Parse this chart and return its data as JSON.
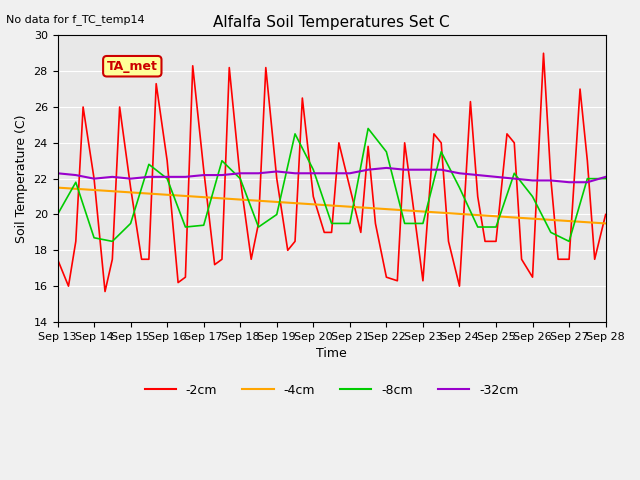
{
  "title": "Alfalfa Soil Temperatures Set C",
  "subtitle": "No data for f_TC_temp14",
  "xlabel": "Time",
  "ylabel": "Soil Temperature (C)",
  "ylim": [
    14,
    30
  ],
  "xlim": [
    0,
    15
  ],
  "xtick_positions": [
    0,
    1,
    2,
    3,
    4,
    5,
    6,
    7,
    8,
    9,
    10,
    11,
    12,
    13,
    14,
    15
  ],
  "xtick_labels": [
    "Sep 13",
    "Sep 14",
    "Sep 15",
    "Sep 16",
    "Sep 17",
    "Sep 18",
    "Sep 19",
    "Sep 20",
    "Sep 21",
    "Sep 22",
    "Sep 23",
    "Sep 24",
    "Sep 25",
    "Sep 26",
    "Sep 27",
    "Sep 28"
  ],
  "legend_labels": [
    "-2cm",
    "-4cm",
    "-8cm",
    "-32cm"
  ],
  "legend_colors": [
    "#ff0000",
    "#ffa500",
    "#00cc00",
    "#9900cc"
  ],
  "ta_met_box_color": "#ffff99",
  "ta_met_text_color": "#cc0000",
  "background_color": "#e8e8e8",
  "grid_color": "#ffffff",
  "series_2cm": {
    "color": "#ff0000",
    "x": [
      0,
      0.3,
      0.5,
      0.7,
      1.0,
      1.3,
      1.5,
      1.7,
      2.0,
      2.3,
      2.5,
      2.7,
      3.0,
      3.3,
      3.5,
      3.7,
      4.0,
      4.3,
      4.5,
      4.7,
      5.0,
      5.3,
      5.5,
      5.7,
      6.0,
      6.3,
      6.5,
      6.7,
      7.0,
      7.3,
      7.5,
      7.7,
      8.0,
      8.3,
      8.5,
      8.7,
      9.0,
      9.3,
      9.5,
      9.7,
      10.0,
      10.3,
      10.5,
      10.7,
      11.0,
      11.3,
      11.5,
      11.7,
      12.0,
      12.3,
      12.5,
      12.7,
      13.0,
      13.3,
      13.5,
      13.7,
      14.0,
      14.3,
      14.5,
      14.7,
      15.0
    ],
    "y": [
      17.5,
      16.0,
      18.5,
      26.0,
      22.0,
      15.7,
      17.5,
      26.0,
      21.5,
      17.5,
      17.5,
      27.3,
      23.0,
      16.2,
      16.5,
      28.3,
      22.5,
      17.2,
      17.5,
      28.2,
      22.0,
      17.5,
      19.5,
      28.2,
      22.0,
      18.0,
      18.5,
      26.5,
      21.0,
      19.0,
      19.0,
      24.0,
      21.5,
      19.0,
      23.8,
      19.5,
      16.5,
      16.3,
      24.0,
      21.0,
      16.3,
      24.5,
      24.0,
      18.5,
      16.0,
      26.3,
      21.0,
      18.5,
      18.5,
      24.5,
      24.0,
      17.5,
      16.5,
      29.0,
      22.0,
      17.5,
      17.5,
      27.0,
      23.0,
      17.5,
      20.0
    ]
  },
  "series_4cm": {
    "color": "#ffa500",
    "x": [
      0,
      15
    ],
    "y": [
      21.5,
      19.5
    ]
  },
  "series_8cm": {
    "color": "#00cc00",
    "x": [
      0,
      0.5,
      1.0,
      1.5,
      2.0,
      2.5,
      3.0,
      3.5,
      4.0,
      4.5,
      5.0,
      5.5,
      6.0,
      6.5,
      7.0,
      7.5,
      8.0,
      8.5,
      9.0,
      9.5,
      10.0,
      10.5,
      11.0,
      11.5,
      12.0,
      12.5,
      13.0,
      13.5,
      14.0,
      14.5,
      15.0
    ],
    "y": [
      20.0,
      21.8,
      18.7,
      18.5,
      19.5,
      22.8,
      22.0,
      19.3,
      19.4,
      23.0,
      22.0,
      19.3,
      20.0,
      24.5,
      22.5,
      19.5,
      19.5,
      24.8,
      23.5,
      19.5,
      19.5,
      23.5,
      21.5,
      19.3,
      19.3,
      22.3,
      21.0,
      19.0,
      18.5,
      22.0,
      22.0
    ]
  },
  "series_32cm": {
    "color": "#9900cc",
    "x": [
      0,
      0.5,
      1.0,
      1.5,
      2.0,
      2.5,
      3.0,
      3.5,
      4.0,
      4.5,
      5.0,
      5.5,
      6.0,
      6.5,
      7.0,
      7.5,
      8.0,
      8.5,
      9.0,
      9.5,
      10.0,
      10.5,
      11.0,
      11.5,
      12.0,
      12.5,
      13.0,
      13.5,
      14.0,
      14.5,
      15.0
    ],
    "y": [
      22.3,
      22.2,
      22.0,
      22.1,
      22.0,
      22.1,
      22.1,
      22.1,
      22.2,
      22.2,
      22.3,
      22.3,
      22.4,
      22.3,
      22.3,
      22.3,
      22.3,
      22.5,
      22.6,
      22.5,
      22.5,
      22.5,
      22.3,
      22.2,
      22.1,
      22.0,
      21.9,
      21.9,
      21.8,
      21.8,
      22.1
    ]
  }
}
